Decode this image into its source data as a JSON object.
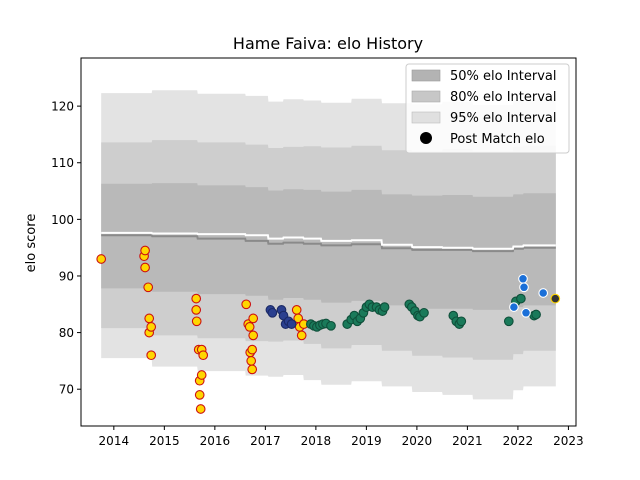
{
  "chart_data": {
    "type": "scatter",
    "title": "Hame Faiva: elo History",
    "xlabel": "",
    "ylabel": "elo score",
    "xlim": [
      2013.35,
      2023.15
    ],
    "ylim": [
      63.5,
      128.5
    ],
    "x_ticks": [
      2014,
      2015,
      2016,
      2017,
      2018,
      2019,
      2020,
      2021,
      2022,
      2023
    ],
    "y_ticks": [
      70,
      80,
      90,
      100,
      110,
      120
    ],
    "legend": {
      "placement": "top-right",
      "entries": [
        "50% elo Interval",
        "80% elo Interval",
        "95% elo Interval",
        "Post Match elo"
      ]
    },
    "bands": {
      "x": [
        2013.75,
        2014.75,
        2014.76,
        2015.65,
        2015.66,
        2016.6,
        2016.61,
        2017.05,
        2017.06,
        2017.35,
        2017.36,
        2017.75,
        2017.76,
        2018.1,
        2018.11,
        2018.7,
        2018.71,
        2019.3,
        2019.31,
        2019.9,
        2019.91,
        2020.5,
        2020.51,
        2021.1,
        2021.11,
        2021.9,
        2021.91,
        2022.1,
        2022.11,
        2022.75
      ],
      "median": [
        97.2,
        97.2,
        97.0,
        97.0,
        96.6,
        96.6,
        96.2,
        96.2,
        95.7,
        95.7,
        95.9,
        95.9,
        95.7,
        95.7,
        95.4,
        95.4,
        95.6,
        95.6,
        94.9,
        94.9,
        94.6,
        94.6,
        94.6,
        94.6,
        94.4,
        94.4,
        94.8,
        94.8,
        95.0,
        95.0
      ],
      "low50": [
        87.8,
        87.8,
        87.2,
        87.2,
        86.8,
        86.8,
        86.5,
        86.5,
        85.8,
        85.8,
        86.1,
        86.1,
        85.8,
        85.8,
        85.3,
        85.3,
        85.6,
        85.6,
        84.8,
        84.8,
        84.2,
        84.2,
        84.2,
        84.2,
        84.0,
        84.0,
        84.5,
        84.5,
        84.8,
        84.8
      ],
      "high50": [
        106.3,
        106.3,
        106.4,
        106.4,
        106.0,
        106.0,
        105.7,
        105.7,
        105.1,
        105.1,
        105.3,
        105.3,
        105.2,
        105.2,
        104.9,
        104.9,
        105.2,
        105.2,
        104.4,
        104.4,
        104.2,
        104.2,
        104.3,
        104.3,
        104.0,
        104.0,
        104.4,
        104.4,
        104.6,
        104.6
      ],
      "low80": [
        80.8,
        80.8,
        79.5,
        79.5,
        79.0,
        79.0,
        78.5,
        78.5,
        78.4,
        78.4,
        78.6,
        78.6,
        78.0,
        78.0,
        77.2,
        77.2,
        77.8,
        77.8,
        76.8,
        76.8,
        75.9,
        75.9,
        75.6,
        75.6,
        75.2,
        75.2,
        76.2,
        76.2,
        76.8,
        76.8
      ],
      "high80": [
        113.6,
        113.6,
        114.0,
        114.0,
        113.6,
        113.6,
        113.2,
        113.2,
        112.6,
        112.6,
        112.8,
        112.8,
        112.9,
        112.9,
        112.7,
        112.7,
        113.0,
        113.0,
        112.2,
        112.2,
        112.0,
        112.0,
        112.4,
        112.4,
        112.0,
        112.0,
        112.8,
        112.8,
        113.0,
        113.0
      ],
      "low95": [
        75.5,
        75.5,
        74.0,
        74.0,
        73.2,
        73.2,
        72.4,
        72.4,
        72.2,
        72.2,
        72.5,
        72.5,
        71.6,
        71.6,
        70.8,
        70.8,
        71.4,
        71.4,
        70.5,
        70.5,
        69.5,
        69.5,
        69.0,
        69.0,
        68.2,
        68.2,
        69.8,
        69.8,
        70.5,
        70.5
      ],
      "high95": [
        122.3,
        122.3,
        122.8,
        122.8,
        122.2,
        122.2,
        121.8,
        121.8,
        120.8,
        120.8,
        121.2,
        121.2,
        121.0,
        121.0,
        120.6,
        120.6,
        121.3,
        121.3,
        120.5,
        120.5,
        120.3,
        120.3,
        120.8,
        120.8,
        120.2,
        120.2,
        121.0,
        121.0,
        121.4,
        121.4
      ]
    },
    "white_line": {
      "x": [
        2013.75,
        2014.75,
        2014.76,
        2015.65,
        2015.66,
        2016.6,
        2016.61,
        2017.05,
        2017.06,
        2017.35,
        2017.36,
        2017.75,
        2017.76,
        2018.1,
        2018.11,
        2018.7,
        2018.71,
        2019.3,
        2019.31,
        2019.9,
        2019.91,
        2020.5,
        2020.51,
        2021.1,
        2021.11,
        2021.9,
        2021.91,
        2022.1,
        2022.11,
        2022.75
      ],
      "y": [
        97.6,
        97.6,
        97.5,
        97.5,
        97.4,
        97.4,
        97.2,
        97.2,
        96.6,
        96.6,
        96.8,
        96.8,
        96.6,
        96.6,
        96.2,
        96.2,
        96.3,
        96.3,
        95.5,
        95.5,
        95.1,
        95.1,
        95.0,
        95.0,
        94.8,
        94.8,
        95.2,
        95.2,
        95.4,
        95.4
      ]
    },
    "series": [
      {
        "fill": "#ffd600",
        "edge": "#cc1111",
        "points": [
          [
            2013.75,
            93.0
          ],
          [
            2014.6,
            93.5
          ],
          [
            2014.62,
            94.5
          ],
          [
            2014.62,
            91.5
          ],
          [
            2014.68,
            88.0
          ],
          [
            2014.7,
            82.5
          ],
          [
            2014.7,
            80.0
          ],
          [
            2014.74,
            81.0
          ],
          [
            2014.74,
            76.0
          ],
          [
            2015.63,
            86.0
          ],
          [
            2015.63,
            84.0
          ],
          [
            2015.64,
            82.0
          ],
          [
            2015.68,
            77.0
          ],
          [
            2015.7,
            71.5
          ],
          [
            2015.7,
            69.0
          ],
          [
            2015.72,
            66.5
          ],
          [
            2015.74,
            72.5
          ],
          [
            2015.74,
            77.0
          ],
          [
            2015.77,
            76.0
          ],
          [
            2016.62,
            85.0
          ],
          [
            2016.66,
            81.5
          ],
          [
            2016.69,
            81.0
          ],
          [
            2016.7,
            76.5
          ],
          [
            2016.72,
            75.0
          ],
          [
            2016.74,
            73.5
          ],
          [
            2016.74,
            77.0
          ],
          [
            2016.76,
            79.5
          ],
          [
            2016.76,
            82.5
          ],
          [
            2017.62,
            84.0
          ],
          [
            2017.65,
            82.5
          ],
          [
            2017.68,
            81.0
          ],
          [
            2017.72,
            79.5
          ],
          [
            2017.76,
            81.5
          ]
        ]
      },
      {
        "fill": "#2a3f8f",
        "edge": "#1b2a66",
        "points": [
          [
            2017.1,
            84.0
          ],
          [
            2017.14,
            83.5
          ],
          [
            2017.32,
            84.0
          ],
          [
            2017.36,
            83.0
          ],
          [
            2017.4,
            81.5
          ],
          [
            2017.46,
            82.0
          ],
          [
            2017.52,
            81.5
          ]
        ]
      },
      {
        "fill": "#1a7a5a",
        "edge": "#0f4f3a",
        "points": [
          [
            2017.9,
            81.5
          ],
          [
            2017.96,
            81.2
          ],
          [
            2018.02,
            81.0
          ],
          [
            2018.08,
            81.3
          ],
          [
            2018.14,
            81.5
          ],
          [
            2018.2,
            81.6
          ],
          [
            2018.3,
            81.2
          ],
          [
            2018.62,
            81.5
          ],
          [
            2018.7,
            82.3
          ],
          [
            2018.76,
            83.0
          ],
          [
            2018.82,
            82.0
          ],
          [
            2018.88,
            82.5
          ],
          [
            2018.94,
            83.5
          ],
          [
            2019.0,
            84.5
          ],
          [
            2019.06,
            85.0
          ],
          [
            2019.12,
            84.5
          ],
          [
            2019.2,
            84.5
          ],
          [
            2019.26,
            84.0
          ],
          [
            2019.32,
            83.8
          ],
          [
            2019.36,
            84.5
          ],
          [
            2019.85,
            85.0
          ],
          [
            2019.9,
            84.5
          ],
          [
            2019.96,
            83.8
          ],
          [
            2020.02,
            83.0
          ],
          [
            2020.06,
            82.8
          ],
          [
            2020.14,
            83.5
          ],
          [
            2020.72,
            83.0
          ],
          [
            2020.78,
            82.0
          ],
          [
            2020.84,
            81.5
          ],
          [
            2020.88,
            82.0
          ],
          [
            2021.82,
            82.0
          ],
          [
            2021.96,
            85.5
          ],
          [
            2022.06,
            86.0
          ],
          [
            2022.32,
            83.0
          ],
          [
            2022.36,
            83.2
          ]
        ]
      },
      {
        "fill": "#1a6fd8",
        "edge": "#ffffff",
        "points": [
          [
            2021.92,
            84.5
          ],
          [
            2022.1,
            89.5
          ],
          [
            2022.12,
            88.0
          ],
          [
            2022.16,
            83.5
          ],
          [
            2022.5,
            87.0
          ]
        ]
      },
      {
        "fill": "#333333",
        "edge": "#ffd600",
        "points": [
          [
            2022.74,
            86.0
          ]
        ]
      }
    ]
  }
}
